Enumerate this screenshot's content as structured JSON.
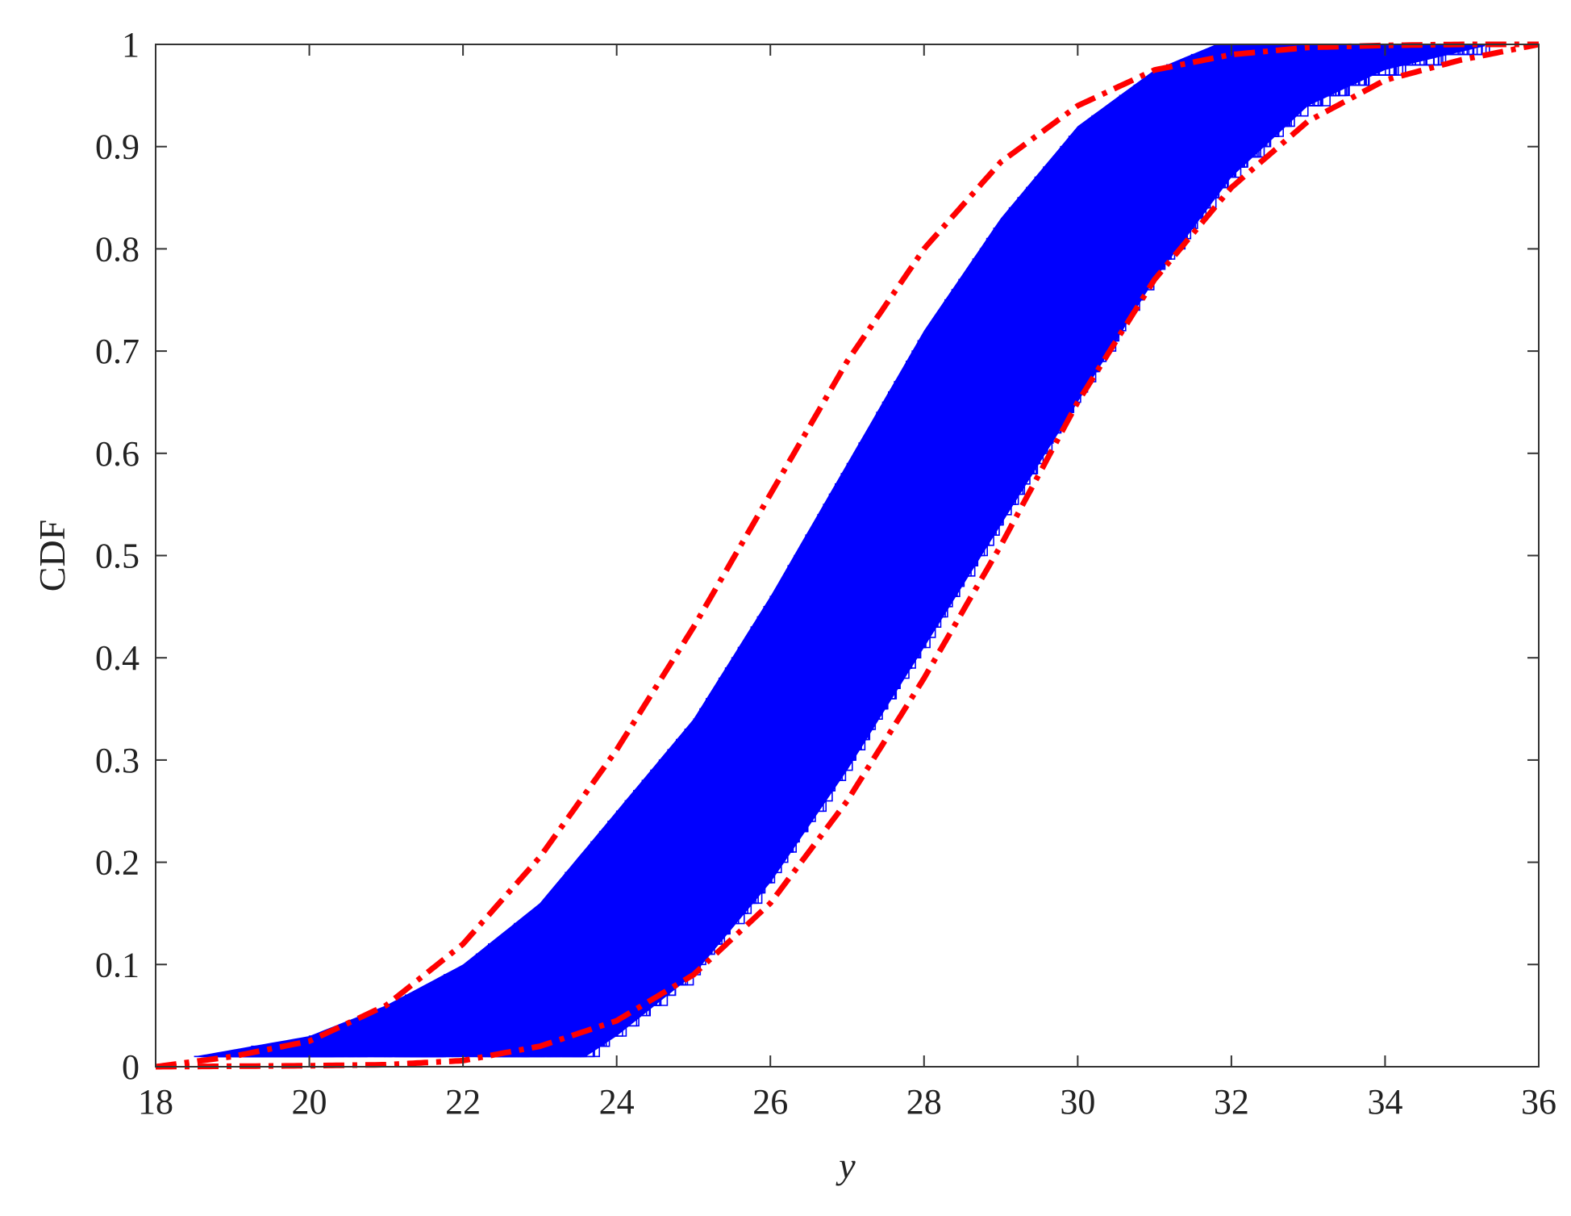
{
  "chart_data": {
    "type": "line",
    "title": "",
    "xlabel": "y",
    "ylabel": "CDF",
    "xlim": [
      18,
      36
    ],
    "ylim": [
      0,
      1
    ],
    "x_ticks": [
      18,
      20,
      22,
      24,
      26,
      28,
      30,
      32,
      34,
      36
    ],
    "x_tick_labels": [
      "18",
      "20",
      "22",
      "24",
      "26",
      "28",
      "30",
      "32",
      "34",
      "36"
    ],
    "y_ticks": [
      0,
      0.1,
      0.2,
      0.3,
      0.4,
      0.5,
      0.6,
      0.7,
      0.8,
      0.9,
      1
    ],
    "y_tick_labels": [
      "0",
      "0.1",
      "0.2",
      "0.3",
      "0.4",
      "0.5",
      "0.6",
      "0.7",
      "0.8",
      "0.9",
      "1"
    ],
    "grid": false,
    "legend": "none",
    "series": [
      {
        "style": "dash-dot",
        "color": "#ff0000",
        "points": [
          [
            18,
            0.0
          ],
          [
            19,
            0.01
          ],
          [
            20,
            0.025
          ],
          [
            21,
            0.06
          ],
          [
            22,
            0.12
          ],
          [
            23,
            0.205
          ],
          [
            24,
            0.31
          ],
          [
            25,
            0.43
          ],
          [
            26,
            0.56
          ],
          [
            27,
            0.69
          ],
          [
            28,
            0.8
          ],
          [
            29,
            0.885
          ],
          [
            30,
            0.94
          ],
          [
            31,
            0.975
          ],
          [
            32,
            0.99
          ],
          [
            33,
            0.997
          ],
          [
            34,
            0.999
          ],
          [
            35,
            1.0
          ],
          [
            36,
            1.0
          ]
        ]
      },
      {
        "style": "dash-dot",
        "color": "#ff0000",
        "points": [
          [
            18,
            0.0
          ],
          [
            20,
            0.001
          ],
          [
            21,
            0.002
          ],
          [
            22,
            0.006
          ],
          [
            23,
            0.02
          ],
          [
            24,
            0.045
          ],
          [
            25,
            0.09
          ],
          [
            26,
            0.16
          ],
          [
            27,
            0.26
          ],
          [
            28,
            0.38
          ],
          [
            29,
            0.51
          ],
          [
            30,
            0.65
          ],
          [
            31,
            0.77
          ],
          [
            32,
            0.86
          ],
          [
            33,
            0.925
          ],
          [
            34,
            0.965
          ],
          [
            35,
            0.985
          ],
          [
            36,
            1.0
          ]
        ]
      }
    ],
    "band": {
      "description_color": "#0000ff",
      "count": 90,
      "lower_bound": [
        [
          23.6,
          0.01
        ],
        [
          24.0,
          0.03
        ],
        [
          25.0,
          0.09
        ],
        [
          26.0,
          0.18
        ],
        [
          27.0,
          0.29
        ],
        [
          28.0,
          0.41
        ],
        [
          29.0,
          0.53
        ],
        [
          30.0,
          0.65
        ],
        [
          31.0,
          0.77
        ],
        [
          32.0,
          0.87
        ],
        [
          33.0,
          0.94
        ],
        [
          34.0,
          0.975
        ],
        [
          35.4,
          1.0
        ]
      ],
      "upper_bound": [
        [
          18.5,
          0.01
        ],
        [
          20.0,
          0.03
        ],
        [
          21.0,
          0.06
        ],
        [
          22.0,
          0.1
        ],
        [
          23.0,
          0.16
        ],
        [
          24.0,
          0.25
        ],
        [
          25.0,
          0.34
        ],
        [
          26.0,
          0.46
        ],
        [
          27.0,
          0.59
        ],
        [
          28.0,
          0.72
        ],
        [
          29.0,
          0.83
        ],
        [
          30.0,
          0.92
        ],
        [
          31.0,
          0.975
        ],
        [
          31.8,
          1.0
        ]
      ]
    }
  }
}
